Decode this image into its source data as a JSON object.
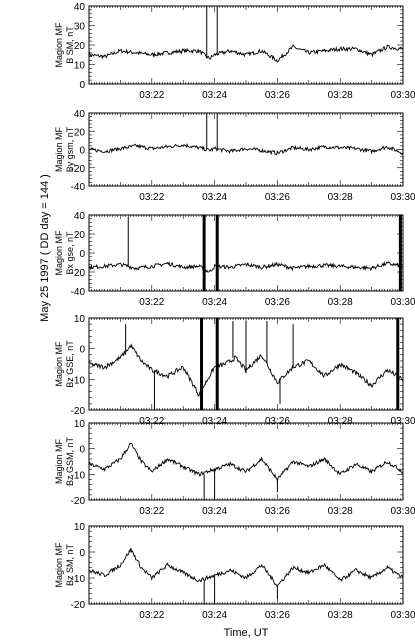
{
  "figure": {
    "side_title": "May 25 1997  ( DD day = 144 )",
    "x_axis_title": "Time, UT"
  },
  "chart_data": [
    {
      "type": "line",
      "ylabel": [
        "Magion MF",
        "B SM, nT"
      ],
      "x_range": [
        "03:20",
        "03:30"
      ],
      "xticks": [
        "03:22",
        "03:24",
        "03:26",
        "03:28",
        "03:30"
      ],
      "ylim": [
        0,
        40
      ],
      "yticks": [
        0,
        10,
        20,
        30,
        40
      ],
      "series": [
        {
          "x": [
            "03:20:00",
            "03:20:30",
            "03:21:00",
            "03:21:30",
            "03:22:00",
            "03:22:30",
            "03:23:00",
            "03:23:30",
            "03:23:50",
            "03:24:00",
            "03:24:30",
            "03:25:00",
            "03:25:30",
            "03:26:00",
            "03:26:30",
            "03:27:00",
            "03:27:30",
            "03:28:00",
            "03:28:30",
            "03:29:00",
            "03:29:30",
            "03:30:00"
          ],
          "values": [
            15,
            14,
            17,
            16,
            15,
            16,
            17,
            17,
            13,
            15,
            17,
            15,
            17,
            12,
            19,
            16,
            17,
            18,
            18,
            15,
            19,
            18
          ]
        }
      ],
      "spikes": [
        {
          "x": "03:23:45",
          "from": 13,
          "to": 40
        },
        {
          "x": "03:24:05",
          "from": 15,
          "to": 40
        }
      ]
    },
    {
      "type": "line",
      "ylabel": [
        "Magion MF",
        "By gsm, nT"
      ],
      "x_range": [
        "03:20",
        "03:30"
      ],
      "xticks": [
        "03:22",
        "03:24",
        "03:26",
        "03:28",
        "03:30"
      ],
      "ylim": [
        -40,
        40
      ],
      "yticks": [
        -40,
        -20,
        0,
        20,
        40
      ],
      "series": [
        {
          "x": [
            "03:20:00",
            "03:20:30",
            "03:21:00",
            "03:21:30",
            "03:22:00",
            "03:22:30",
            "03:23:00",
            "03:23:30",
            "03:23:50",
            "03:24:00",
            "03:24:30",
            "03:25:00",
            "03:25:30",
            "03:26:00",
            "03:26:30",
            "03:27:00",
            "03:27:30",
            "03:28:00",
            "03:28:30",
            "03:29:00",
            "03:29:30",
            "03:30:00"
          ],
          "values": [
            0,
            -2,
            1,
            4,
            1,
            3,
            5,
            2,
            -1,
            1,
            -2,
            1,
            -1,
            -4,
            2,
            0,
            3,
            2,
            1,
            -2,
            3,
            -4
          ]
        }
      ],
      "spikes": [
        {
          "x": "03:23:45",
          "from": 0,
          "to": 40
        },
        {
          "x": "03:24:05",
          "from": 0,
          "to": 40
        }
      ]
    },
    {
      "type": "line",
      "ylabel": [
        "Magion MF",
        "Bx gse, nT"
      ],
      "x_range": [
        "03:20",
        "03:30"
      ],
      "xticks": [
        "03:22",
        "03:24",
        "03:26",
        "03:28",
        "03:30"
      ],
      "ylim": [
        -40,
        40
      ],
      "yticks": [
        -40,
        -20,
        0,
        20,
        40
      ],
      "series": [
        {
          "x": [
            "03:20:00",
            "03:20:30",
            "03:21:00",
            "03:21:30",
            "03:22:00",
            "03:22:30",
            "03:23:00",
            "03:23:30",
            "03:23:50",
            "03:24:00",
            "03:24:30",
            "03:25:00",
            "03:25:30",
            "03:26:00",
            "03:26:30",
            "03:27:00",
            "03:27:30",
            "03:28:00",
            "03:28:30",
            "03:29:00",
            "03:29:30",
            "03:30:00"
          ],
          "values": [
            -15,
            -14,
            -12,
            -16,
            -14,
            -11,
            -15,
            -14,
            -20,
            -14,
            -15,
            -12,
            -15,
            -12,
            -16,
            -14,
            -13,
            -14,
            -15,
            -16,
            -11,
            -14
          ]
        }
      ],
      "spikes": [
        {
          "x": "03:21:15",
          "from": -15,
          "to": 38
        },
        {
          "x": "03:23:40",
          "from": -40,
          "to": 40
        },
        {
          "x": "03:24:05",
          "from": -40,
          "to": 40
        },
        {
          "x": "03:29:55",
          "from": -40,
          "to": 40
        }
      ]
    },
    {
      "type": "line",
      "ylabel": [
        "Magion MF",
        "Bz GSE, nT"
      ],
      "x_range": [
        "03:20",
        "03:30"
      ],
      "xticks": [
        "03:22",
        "03:24",
        "03:26",
        "03:28",
        "03:30"
      ],
      "ylim": [
        -20,
        10
      ],
      "yticks": [
        -20,
        -10,
        0,
        10
      ],
      "series": [
        {
          "x": [
            "03:20:00",
            "03:20:30",
            "03:21:00",
            "03:21:20",
            "03:21:40",
            "03:22:00",
            "03:22:30",
            "03:23:00",
            "03:23:30",
            "03:24:00",
            "03:24:20",
            "03:24:40",
            "03:25:00",
            "03:25:30",
            "03:26:00",
            "03:26:30",
            "03:27:00",
            "03:27:30",
            "03:28:00",
            "03:28:30",
            "03:29:00",
            "03:29:30",
            "03:30:00"
          ],
          "values": [
            -5,
            -6,
            -3,
            1,
            -4,
            -7,
            -9,
            -6,
            -15,
            -6,
            -5,
            -3,
            -7,
            -2,
            -11,
            -6,
            -4,
            -9,
            -5,
            -8,
            -12,
            -7,
            -10
          ]
        }
      ],
      "spikes": [
        {
          "x": "03:21:10",
          "from": -2,
          "to": 8
        },
        {
          "x": "03:22:05",
          "from": -7,
          "to": -20
        },
        {
          "x": "03:23:35",
          "from": -20,
          "to": 10
        },
        {
          "x": "03:24:05",
          "from": -20,
          "to": 10
        },
        {
          "x": "03:24:35",
          "from": -3,
          "to": 9
        },
        {
          "x": "03:25:00",
          "from": -8,
          "to": 9
        },
        {
          "x": "03:25:40",
          "from": -5,
          "to": 9
        },
        {
          "x": "03:26:05",
          "from": -10,
          "to": -18
        },
        {
          "x": "03:26:30",
          "from": -6,
          "to": 8
        },
        {
          "x": "03:29:50",
          "from": -20,
          "to": 10
        }
      ]
    },
    {
      "type": "line",
      "ylabel": [
        "Magion MF",
        "Bz GSM, nT"
      ],
      "x_range": [
        "03:20",
        "03:30"
      ],
      "xticks": [
        "03:22",
        "03:24",
        "03:26",
        "03:28",
        "03:30"
      ],
      "ylim": [
        -20,
        10
      ],
      "yticks": [
        -20,
        -10,
        0,
        10
      ],
      "series": [
        {
          "x": [
            "03:20:00",
            "03:20:30",
            "03:21:00",
            "03:21:20",
            "03:21:40",
            "03:22:00",
            "03:22:30",
            "03:23:00",
            "03:23:30",
            "03:24:00",
            "03:24:30",
            "03:25:00",
            "03:25:30",
            "03:26:00",
            "03:26:30",
            "03:27:00",
            "03:27:30",
            "03:28:00",
            "03:28:30",
            "03:29:00",
            "03:29:30",
            "03:30:00"
          ],
          "values": [
            -6,
            -8,
            -4,
            2,
            -5,
            -9,
            -4,
            -7,
            -10,
            -8,
            -6,
            -9,
            -4,
            -12,
            -5,
            -7,
            -4,
            -10,
            -6,
            -9,
            -5,
            -9
          ]
        }
      ],
      "spikes": [
        {
          "x": "03:23:40",
          "from": -10,
          "to": -20
        },
        {
          "x": "03:24:00",
          "from": -8,
          "to": -20
        },
        {
          "x": "03:26:00",
          "from": -12,
          "to": -17
        }
      ]
    },
    {
      "type": "line",
      "ylabel": [
        "Magion MF",
        "Bz SM, nT"
      ],
      "x_range": [
        "03:20",
        "03:30"
      ],
      "xticks": [
        "03:22",
        "03:24",
        "03:26",
        "03:28",
        "03:30"
      ],
      "ylim": [
        -20,
        10
      ],
      "yticks": [
        -20,
        -10,
        0,
        10
      ],
      "series": [
        {
          "x": [
            "03:20:00",
            "03:20:30",
            "03:21:00",
            "03:21:20",
            "03:21:40",
            "03:22:00",
            "03:22:30",
            "03:23:00",
            "03:23:30",
            "03:24:00",
            "03:24:30",
            "03:25:00",
            "03:25:30",
            "03:26:00",
            "03:26:30",
            "03:27:00",
            "03:27:30",
            "03:28:00",
            "03:28:30",
            "03:29:00",
            "03:29:30",
            "03:30:00"
          ],
          "values": [
            -7,
            -9,
            -5,
            1,
            -6,
            -10,
            -5,
            -8,
            -11,
            -9,
            -7,
            -10,
            -5,
            -13,
            -6,
            -8,
            -5,
            -11,
            -7,
            -10,
            -6,
            -10
          ]
        }
      ],
      "spikes": [
        {
          "x": "03:23:40",
          "from": -11,
          "to": -20
        },
        {
          "x": "03:24:00",
          "from": -9,
          "to": -20
        },
        {
          "x": "03:26:00",
          "from": -13,
          "to": -18
        }
      ]
    }
  ]
}
